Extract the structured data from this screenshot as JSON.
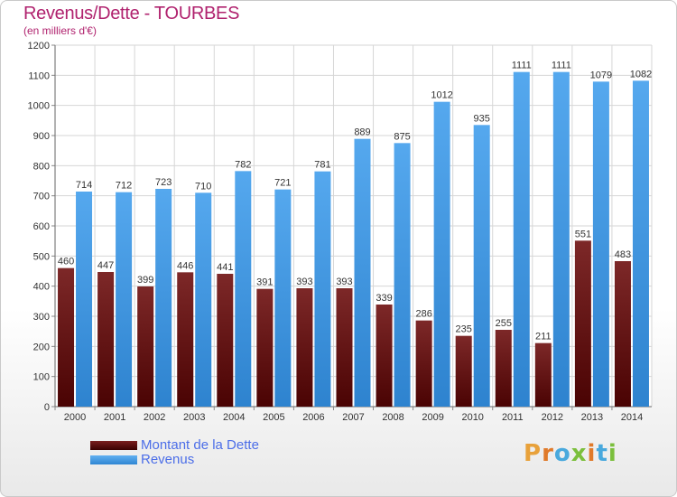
{
  "header": {
    "title": "Revenus/Dette - TOURBES",
    "subtitle": "(en milliers d'€)"
  },
  "chart_data": {
    "type": "bar",
    "categories": [
      "2000",
      "2001",
      "2002",
      "2003",
      "2004",
      "2005",
      "2006",
      "2007",
      "2008",
      "2009",
      "2010",
      "2011",
      "2012",
      "2013",
      "2014"
    ],
    "series": [
      {
        "name": "Montant de la Dette",
        "color": "#7a1f1f",
        "values": [
          460,
          447,
          399,
          446,
          441,
          391,
          393,
          393,
          339,
          286,
          235,
          255,
          211,
          551,
          483
        ]
      },
      {
        "name": "Revenus",
        "color": "#3f96e0",
        "values": [
          714,
          712,
          723,
          710,
          782,
          721,
          781,
          889,
          875,
          1012,
          935,
          1111,
          1111,
          1079,
          1082
        ]
      }
    ],
    "ylim": [
      0,
      1200
    ],
    "yticks": [
      0,
      100,
      200,
      300,
      400,
      500,
      600,
      700,
      800,
      900,
      1000,
      1100,
      1200
    ],
    "grid": true,
    "legend_position": "bottom-left"
  },
  "legend": {
    "items": [
      {
        "label": "Montant de la Dette",
        "color": "#7a1f1f"
      },
      {
        "label": "Revenus",
        "color": "#3f96e0"
      }
    ]
  },
  "logo": {
    "letters": [
      "P",
      "r",
      "o",
      "x",
      "i",
      "t",
      "i"
    ],
    "colors": [
      "#e8a13a",
      "#e07a2a",
      "#49a9dd",
      "#7bbf3c",
      "#e07a2a",
      "#49a9dd",
      "#7bbf3c"
    ]
  }
}
